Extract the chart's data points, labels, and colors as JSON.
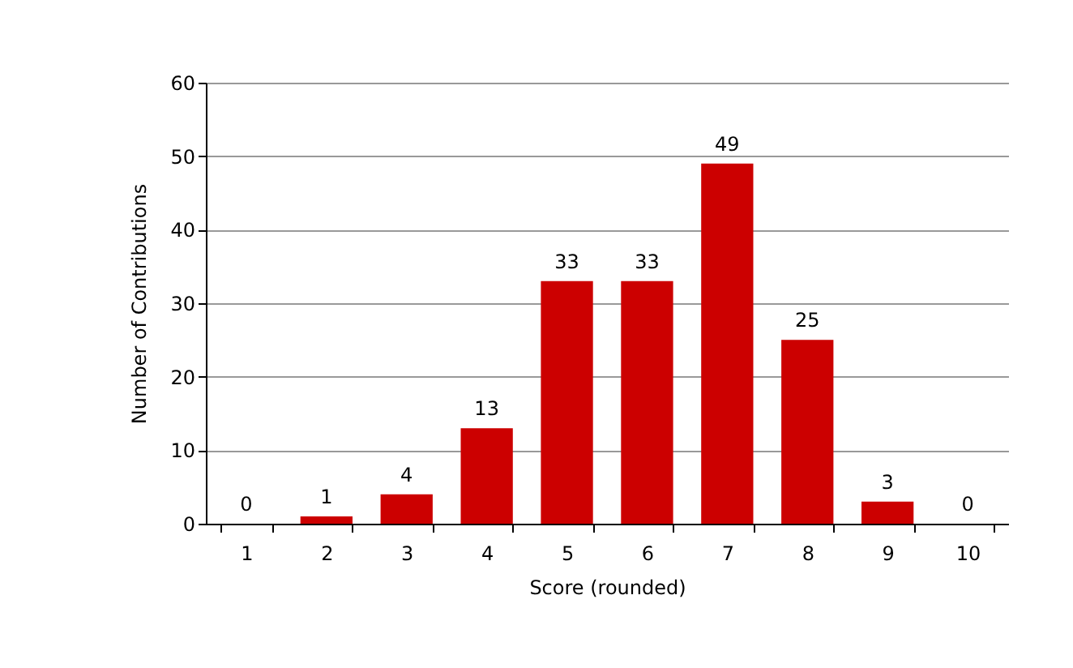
{
  "chart_data": {
    "type": "bar",
    "xlabel": "Score (rounded)",
    "ylabel": "Number of Contributions",
    "categories": [
      "1",
      "2",
      "3",
      "4",
      "5",
      "6",
      "7",
      "8",
      "9",
      "10"
    ],
    "values": [
      0,
      1,
      4,
      13,
      33,
      33,
      49,
      25,
      3,
      0
    ],
    "color": "#cc0000",
    "ylim": [
      0,
      60
    ],
    "yticks": [
      0,
      10,
      20,
      30,
      40,
      50,
      60
    ],
    "grid": "y",
    "data_labels": true
  }
}
